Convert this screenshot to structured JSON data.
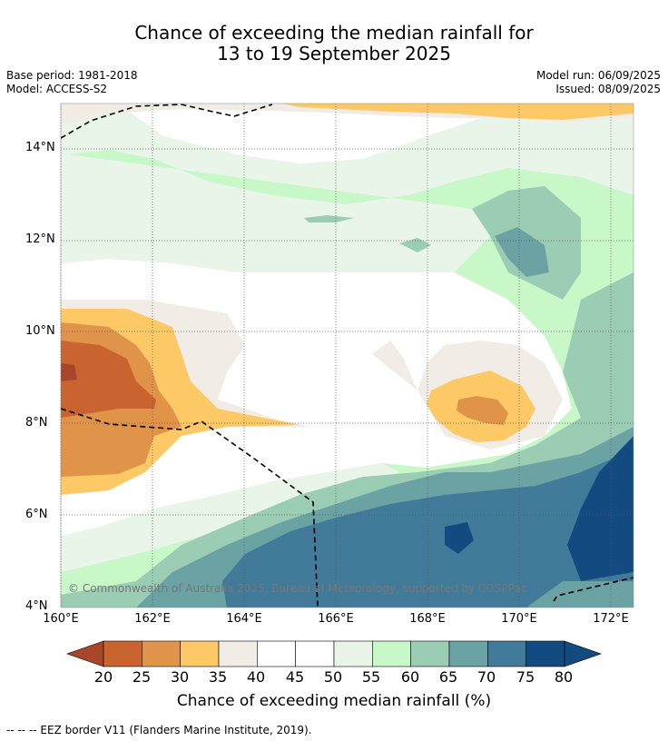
{
  "title": {
    "line1": "Chance of exceeding the median rainfall for",
    "line2": "13 to 19 September 2025"
  },
  "meta": {
    "base_period": "Base period: 1981-2018",
    "model": "Model: ACCESS-S2",
    "model_run": "Model run: 06/09/2025",
    "issued": "Issued: 08/09/2025"
  },
  "axes": {
    "lat_labels": [
      "14°N",
      "12°N",
      "10°N",
      "8°N",
      "6°N",
      "4°N"
    ],
    "lon_labels": [
      "160°E",
      "162°E",
      "164°E",
      "166°E",
      "168°E",
      "170°E",
      "172°E"
    ]
  },
  "copyright": "© Commonwealth of Australia 2025, Bureau of Meteorology, supported by COSPPac",
  "colorbar": {
    "ticks": [
      "20",
      "25",
      "30",
      "35",
      "40",
      "45",
      "50",
      "55",
      "60",
      "65",
      "70",
      "75",
      "80"
    ],
    "colors": [
      "#a8462a",
      "#c9632f",
      "#e0944a",
      "#fdc966",
      "#f1ede6",
      "#ffffff",
      "#ffffff",
      "#eaf5ea",
      "#c8f7c8",
      "#9bcdb4",
      "#6ba2a3",
      "#427a9a",
      "#134b80"
    ],
    "label": "Chance of exceeding median rainfall (%)"
  },
  "footer": "-- -- -- EEZ border V11 (Flanders Marine Institute, 2019)."
}
